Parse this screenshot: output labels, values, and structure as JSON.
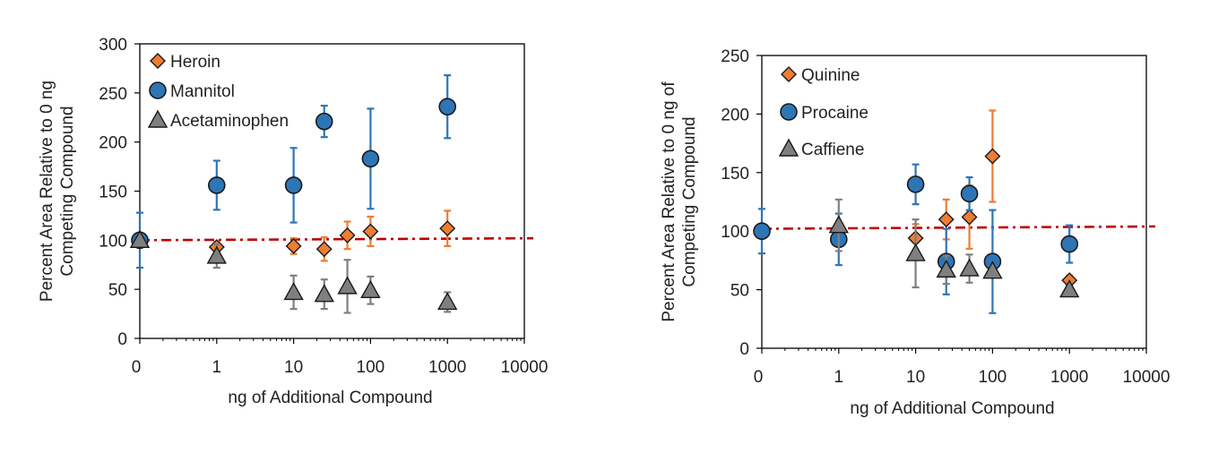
{
  "chart_data": [
    {
      "type": "scatter",
      "xscale": "log",
      "xlabel": "ng of Additional  Compound",
      "ylabel_lines": [
        "Percent  Area Relative to 0 ng",
        "Competing Compound"
      ],
      "xticks": [
        "0",
        "1",
        "10",
        "100",
        "1000",
        "10000"
      ],
      "yticks": [
        0,
        50,
        100,
        150,
        200,
        250,
        300
      ],
      "ylim": [
        0,
        300
      ],
      "legend_position": "top-left",
      "reference_line": {
        "y_left": 100,
        "y_right": 102,
        "color": "#c00000",
        "style": "dash-dot"
      },
      "series": [
        {
          "name": "Heroin",
          "marker": "diamond",
          "color": "#ed7d31",
          "err_color": "#ed7d31",
          "points": [
            {
              "x": "1",
              "y": 93,
              "err": 5
            },
            {
              "x": "10",
              "y": 94,
              "err": 8
            },
            {
              "x": "25",
              "y": 91,
              "err": 12
            },
            {
              "x": "50",
              "y": 105,
              "err": 14
            },
            {
              "x": "100",
              "y": 109,
              "err": 15
            },
            {
              "x": "1000",
              "y": 112,
              "err": 18
            }
          ]
        },
        {
          "name": "Mannitol",
          "marker": "circle",
          "color": "#2e75b6",
          "err_color": "#2e75b6",
          "points": [
            {
              "x": "0",
              "y": 100,
              "err": 28
            },
            {
              "x": "1",
              "y": 156,
              "err": 25
            },
            {
              "x": "10",
              "y": 156,
              "err": 38
            },
            {
              "x": "25",
              "y": 221,
              "err": 16
            },
            {
              "x": "100",
              "y": 183,
              "err": 51
            },
            {
              "x": "1000",
              "y": 236,
              "err": 32
            }
          ]
        },
        {
          "name": "Acetaminophen",
          "marker": "triangle",
          "color": "#7f7f7f",
          "err_color": "#7f7f7f",
          "points": [
            {
              "x": "0",
              "y": 100,
              "err": 5
            },
            {
              "x": "1",
              "y": 84,
              "err": 12
            },
            {
              "x": "10",
              "y": 47,
              "err": 17
            },
            {
              "x": "25",
              "y": 45,
              "err": 15
            },
            {
              "x": "50",
              "y": 53,
              "err": 27
            },
            {
              "x": "100",
              "y": 49,
              "err": 14
            },
            {
              "x": "1000",
              "y": 37,
              "err": 10
            }
          ]
        }
      ]
    },
    {
      "type": "scatter",
      "xscale": "log",
      "xlabel": "ng of Additional  Compound",
      "ylabel_lines": [
        "Percent Area Relative to 0 ng of",
        "Competing Compound"
      ],
      "xticks": [
        "0",
        "1",
        "10",
        "100",
        "1000",
        "10000"
      ],
      "yticks": [
        0,
        50,
        100,
        150,
        200,
        250
      ],
      "ylim": [
        0,
        250
      ],
      "legend_position": "top-left",
      "reference_line": {
        "y_left": 102,
        "y_right": 104,
        "color": "#c00000",
        "style": "dash-dot"
      },
      "series": [
        {
          "name": "Quinine",
          "marker": "diamond",
          "color": "#ed7d31",
          "err_color": "#ed7d31",
          "points": [
            {
              "x": "10",
              "y": 94,
              "err": 12
            },
            {
              "x": "25",
              "y": 110,
              "err": 17
            },
            {
              "x": "50",
              "y": 112,
              "err": 27
            },
            {
              "x": "100",
              "y": 164,
              "err": 39
            },
            {
              "x": "1000",
              "y": 58,
              "err": 4
            }
          ]
        },
        {
          "name": "Procaine",
          "marker": "circle",
          "color": "#2e75b6",
          "err_color": "#2e75b6",
          "points": [
            {
              "x": "0",
              "y": 100,
              "err": 19
            },
            {
              "x": "1",
              "y": 93,
              "err": 22
            },
            {
              "x": "10",
              "y": 140,
              "err": 17
            },
            {
              "x": "25",
              "y": 74,
              "err": 28
            },
            {
              "x": "50",
              "y": 132,
              "err": 14
            },
            {
              "x": "100",
              "y": 74,
              "err": 44
            },
            {
              "x": "1000",
              "y": 89,
              "err": 16
            }
          ]
        },
        {
          "name": "Caffiene",
          "marker": "triangle",
          "color": "#7f7f7f",
          "err_color": "#7f7f7f",
          "points": [
            {
              "x": "1",
              "y": 105,
              "err": 22
            },
            {
              "x": "10",
              "y": 81,
              "err": 29
            },
            {
              "x": "25",
              "y": 67,
              "err": 12
            },
            {
              "x": "50",
              "y": 68,
              "err": 12
            },
            {
              "x": "100",
              "y": 66,
              "err": 4
            },
            {
              "x": "1000",
              "y": 50,
              "err": 3
            }
          ]
        }
      ]
    }
  ]
}
